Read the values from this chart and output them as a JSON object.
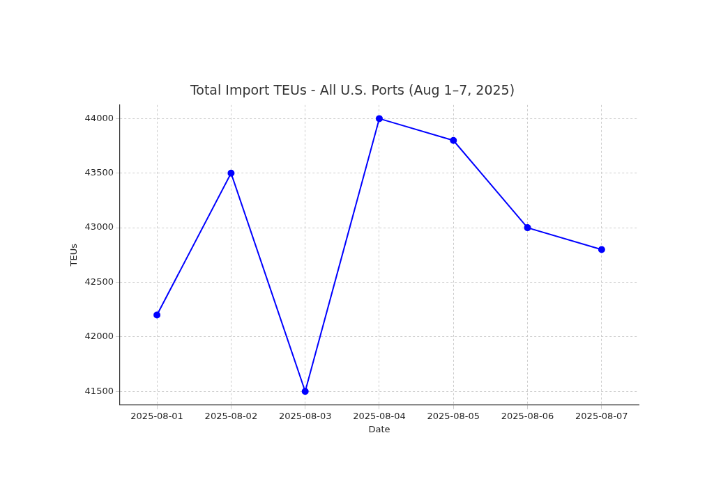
{
  "chart_data": {
    "type": "line",
    "title": "Total Import TEUs - All U.S. Ports (Aug 1–7, 2025)",
    "xlabel": "Date",
    "ylabel": "TEUs",
    "categories": [
      "2025-08-01",
      "2025-08-02",
      "2025-08-03",
      "2025-08-04",
      "2025-08-05",
      "2025-08-06",
      "2025-08-07"
    ],
    "series": [
      {
        "color": "#0000ff",
        "values": [
          42200,
          43500,
          41500,
          44000,
          43800,
          43000,
          42800
        ]
      }
    ],
    "ylim": [
      41375,
      44125
    ],
    "yticks": [
      41500,
      42000,
      42500,
      43000,
      43500,
      44000
    ],
    "grid": true,
    "legend": false,
    "marker": "circle",
    "line_style": "solid"
  }
}
